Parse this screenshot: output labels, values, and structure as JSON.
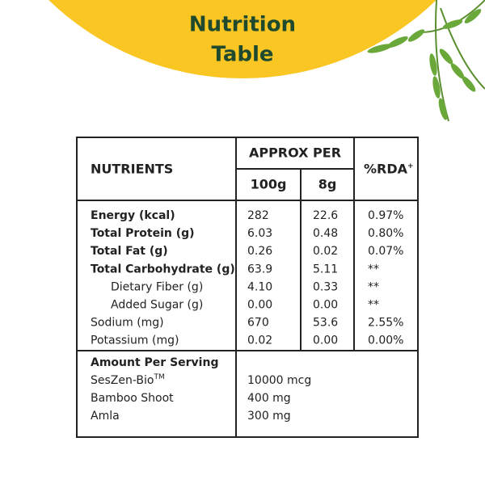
{
  "title": {
    "line1": "Nutrition",
    "line2": "Table"
  },
  "table": {
    "header": {
      "nutrients": "NUTRIENTS",
      "approx_per": "APPROX PER",
      "per_100g": "100g",
      "per_8g": "8g",
      "rda": "%RDA",
      "rda_sup": "+"
    },
    "rows": [
      {
        "label": "Energy (kcal)",
        "per_100g": "282",
        "per_8g": "22.6",
        "rda": "0.97%",
        "style": "bold"
      },
      {
        "label": "Total Protein (g)",
        "per_100g": "6.03",
        "per_8g": "0.48",
        "rda": "0.80%",
        "style": "bold"
      },
      {
        "label": "Total Fat (g)",
        "per_100g": "0.26",
        "per_8g": "0.02",
        "rda": "0.07%",
        "style": "bold"
      },
      {
        "label": "Total Carbohydrate (g)",
        "per_100g": "63.9",
        "per_8g": "5.11",
        "rda": "**",
        "style": "bold"
      },
      {
        "label": "Dietary Fiber (g)",
        "per_100g": "4.10",
        "per_8g": "0.33",
        "rda": "**",
        "style": "indent"
      },
      {
        "label": "Added Sugar (g)",
        "per_100g": "0.00",
        "per_8g": "0.00",
        "rda": "**",
        "style": "indent"
      },
      {
        "label": "Sodium (mg)",
        "per_100g": "670",
        "per_8g": "53.6",
        "rda": "2.55%",
        "style": "normal"
      },
      {
        "label": "Potassium (mg)",
        "per_100g": "0.02",
        "per_8g": "0.00",
        "rda": "0.00%",
        "style": "normal"
      }
    ],
    "serving": {
      "heading": "Amount Per Serving",
      "items": [
        {
          "name": "SesZen-Bio",
          "sup": "TM",
          "amount": "10000 mcg"
        },
        {
          "name": "Bamboo Shoot",
          "amount": "400 mg"
        },
        {
          "name": "Amla",
          "amount": "300 mg"
        }
      ]
    }
  }
}
